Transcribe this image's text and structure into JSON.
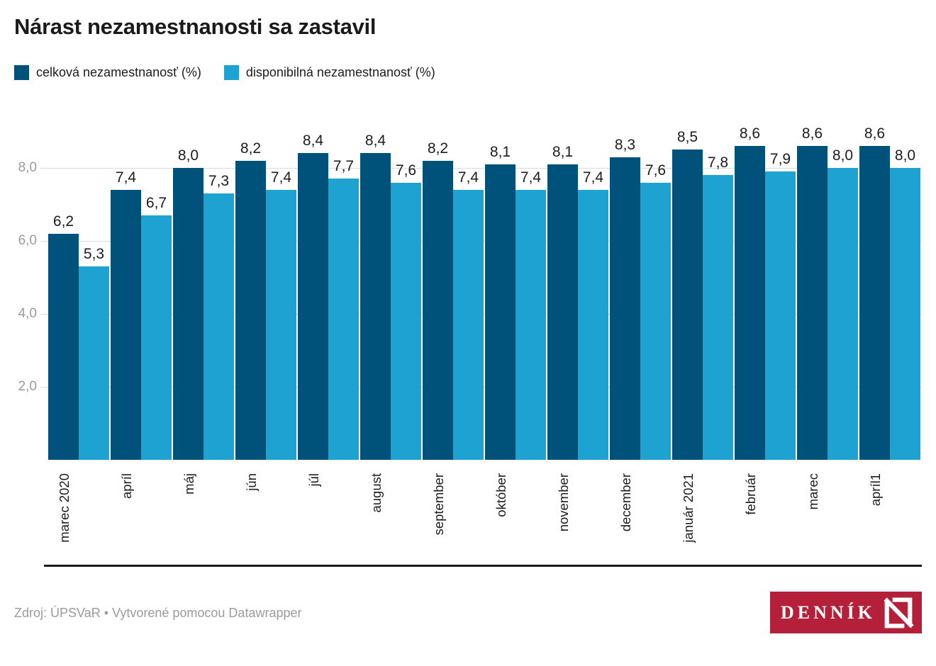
{
  "title": "Nárast nezamestnanosti sa zastavil",
  "legend": [
    {
      "label": "celková nezamestnanosť (%)",
      "color": "#00527a"
    },
    {
      "label": "disponibilná nezamestnanosť (%)",
      "color": "#1da2d2"
    }
  ],
  "footer": {
    "source": "Zdroj: ÚPSVaR • Vytvorené pomocou Datawrapper",
    "logo_text": "DENNÍK",
    "logo_color": "#b41f3a"
  },
  "chart_data": {
    "type": "bar",
    "categories": [
      "marec 2020",
      "apríl",
      "máj",
      "jún",
      "júl",
      "august",
      "september",
      "október",
      "november",
      "december",
      "január 2021",
      "február",
      "marec",
      "apríl1"
    ],
    "series": [
      {
        "name": "celková nezamestnanosť (%)",
        "color": "#00527a",
        "values": [
          6.2,
          7.4,
          8.0,
          8.2,
          8.4,
          8.4,
          8.2,
          8.1,
          8.1,
          8.3,
          8.5,
          8.6,
          8.6,
          8.6
        ]
      },
      {
        "name": "disponibilná nezamestnanosť (%)",
        "color": "#1da2d2",
        "values": [
          5.3,
          6.7,
          7.3,
          7.4,
          7.7,
          7.6,
          7.4,
          7.4,
          7.4,
          7.6,
          7.8,
          7.9,
          8.0,
          8.0
        ]
      }
    ],
    "title": "Nárast nezamestnanosti sa zastavil",
    "xlabel": "",
    "ylabel": "",
    "y_ticks": [
      2,
      4,
      6,
      8
    ],
    "y_tick_labels": [
      "2,0",
      "4,0",
      "6,0",
      "8,0"
    ],
    "ylim": [
      0,
      9.2
    ],
    "decimal_separator": ",",
    "grid": true,
    "legend_position": "top",
    "value_labels": true
  }
}
